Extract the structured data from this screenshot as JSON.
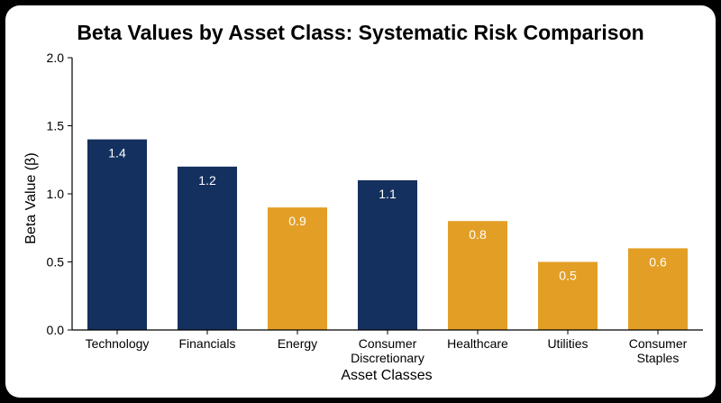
{
  "chart_data": {
    "type": "bar",
    "title": "Beta Values by Asset Class: Systematic Risk Comparison",
    "xlabel": "Asset Classes",
    "ylabel": "Beta Value (β)",
    "ylim": [
      0,
      2.0
    ],
    "yticks": [
      "0.0",
      "0.5",
      "1.0",
      "1.5",
      "2.0"
    ],
    "grid": false,
    "categories": [
      [
        "Technology"
      ],
      [
        "Financials"
      ],
      [
        "Energy"
      ],
      [
        "Consumer",
        "Discretionary"
      ],
      [
        "Healthcare"
      ],
      [
        "Utilities"
      ],
      [
        "Consumer",
        "Staples"
      ]
    ],
    "values": [
      1.4,
      1.2,
      0.9,
      1.1,
      0.8,
      0.5,
      0.6
    ],
    "value_labels": [
      "1.4",
      "1.2",
      "0.9",
      "1.1",
      "0.8",
      "0.5",
      "0.6"
    ],
    "bar_colors": [
      "#14305e",
      "#14305e",
      "#e39f25",
      "#14305e",
      "#e39f25",
      "#e39f25",
      "#e39f25"
    ]
  },
  "colors": {
    "navy": "#14305e",
    "gold": "#e39f25",
    "background": "#ffffff",
    "page": "#000000"
  }
}
